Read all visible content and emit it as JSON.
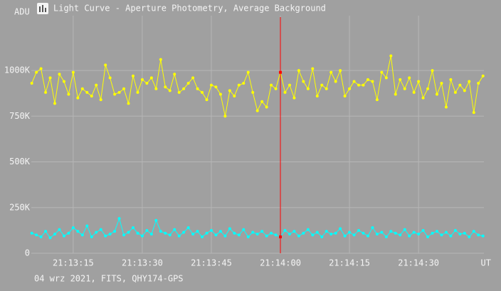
{
  "chart_data": {
    "type": "line",
    "title": "Light Curve - Aperture Photometry, Average Background",
    "y_label": "ADU",
    "x_label": "UT",
    "footer": "04 wrz 2021, FITS, QHY174-GPS",
    "x": [
      6,
      7,
      8,
      9,
      10,
      11,
      12,
      13,
      14,
      15,
      16,
      17,
      18,
      19,
      20,
      21,
      22,
      23,
      24,
      25,
      26,
      27,
      28,
      29,
      30,
      31,
      32,
      33,
      34,
      35,
      36,
      37,
      38,
      39,
      40,
      41,
      42,
      43,
      44,
      45,
      46,
      47,
      48,
      49,
      50,
      51,
      52,
      53,
      54,
      55,
      56,
      57,
      58,
      59,
      60,
      61,
      62,
      63,
      64,
      65,
      66,
      67,
      68,
      69,
      70,
      71,
      72,
      73,
      74,
      75,
      76,
      77,
      78,
      79,
      80,
      81,
      82,
      83,
      84,
      85,
      86,
      87,
      88,
      89,
      90,
      91,
      92,
      93,
      94,
      95,
      96,
      97,
      98,
      99,
      100,
      101,
      102,
      103,
      104
    ],
    "series": [
      {
        "color": "#ffff00",
        "values": [
          930000,
          990000,
          1010000,
          880000,
          960000,
          820000,
          980000,
          940000,
          870000,
          990000,
          850000,
          900000,
          880000,
          860000,
          920000,
          840000,
          1030000,
          960000,
          870000,
          880000,
          900000,
          820000,
          970000,
          880000,
          950000,
          930000,
          960000,
          900000,
          1060000,
          910000,
          890000,
          980000,
          880000,
          900000,
          930000,
          960000,
          900000,
          880000,
          840000,
          920000,
          910000,
          870000,
          750000,
          890000,
          860000,
          920000,
          930000,
          990000,
          880000,
          780000,
          830000,
          800000,
          920000,
          900000,
          990000,
          880000,
          920000,
          850000,
          1000000,
          940000,
          900000,
          1010000,
          860000,
          920000,
          900000,
          990000,
          940000,
          1000000,
          860000,
          900000,
          940000,
          920000,
          920000,
          950000,
          940000,
          840000,
          990000,
          960000,
          1080000,
          870000,
          950000,
          900000,
          960000,
          880000,
          940000,
          850000,
          900000,
          1000000,
          870000,
          930000,
          800000,
          950000,
          880000,
          920000,
          890000,
          940000,
          770000,
          930000,
          970000
        ]
      },
      {
        "color": "#00ffff",
        "values": [
          110000,
          100000,
          90000,
          120000,
          85000,
          105000,
          130000,
          95000,
          110000,
          140000,
          120000,
          100000,
          150000,
          90000,
          115000,
          130000,
          95000,
          105000,
          120000,
          190000,
          100000,
          115000,
          140000,
          110000,
          95000,
          125000,
          105000,
          180000,
          120000,
          110000,
          100000,
          130000,
          95000,
          115000,
          140000,
          105000,
          120000,
          90000,
          110000,
          125000,
          100000,
          120000,
          95000,
          135000,
          110000,
          100000,
          130000,
          90000,
          115000,
          105000,
          120000,
          95000,
          110000,
          100000,
          90000,
          125000,
          105000,
          120000,
          95000,
          110000,
          130000,
          100000,
          115000,
          90000,
          120000,
          105000,
          110000,
          135000,
          95000,
          115000,
          100000,
          125000,
          110000,
          95000,
          140000,
          105000,
          115000,
          90000,
          120000,
          110000,
          100000,
          130000,
          95000,
          115000,
          105000,
          125000,
          90000,
          110000,
          120000,
          100000,
          115000,
          95000,
          125000,
          105000,
          110000,
          90000,
          120000,
          100000,
          95000
        ]
      }
    ],
    "xlim": [
      5.9,
      104.2
    ],
    "xticks": [
      {
        "value": 15,
        "label": "21:13:15"
      },
      {
        "value": 30,
        "label": "21:13:30"
      },
      {
        "value": 45,
        "label": "21:13:45"
      },
      {
        "value": 60,
        "label": "21:14:00"
      },
      {
        "value": 75,
        "label": "21:14:15"
      },
      {
        "value": 90,
        "label": "21:14:30"
      }
    ],
    "ylim": [
      0,
      1300000
    ],
    "yticks": [
      0,
      {
        "value": 250000,
        "label": "250K"
      },
      {
        "value": 500000,
        "label": "500K"
      },
      {
        "value": 750000,
        "label": "750K"
      },
      {
        "value": 1000000,
        "label": "1000K"
      }
    ],
    "grid": true,
    "cursor": 60,
    "cursor_color": "#ff0000"
  }
}
